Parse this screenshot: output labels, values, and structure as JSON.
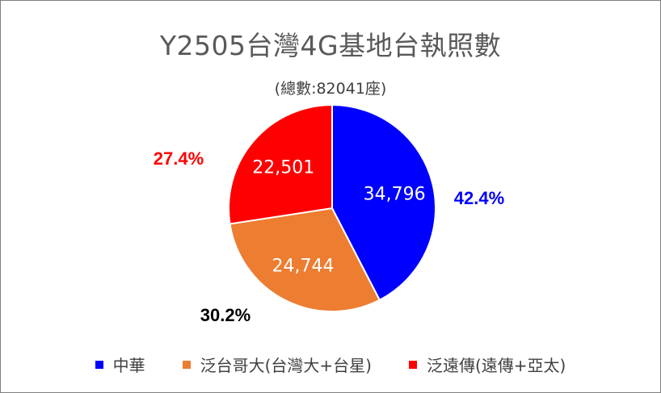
{
  "chart_data": {
    "type": "pie",
    "title": "Y2505台灣4G基地台執照數",
    "subtitle": "(總數:82041座)",
    "slices": [
      {
        "name": "中華",
        "value": 34796,
        "value_label": "34,796",
        "percent_label": "42.4%",
        "color": "#0000FF",
        "percent_color": "#0000FF"
      },
      {
        "name": "泛台哥大(台灣大+台星)",
        "value": 24744,
        "value_label": "24,744",
        "percent_label": "30.2%",
        "color": "#ED7D31",
        "percent_color": "#000000"
      },
      {
        "name": "泛遠傳(遠傳+亞太)",
        "value": 22501,
        "value_label": "22,501",
        "percent_label": "27.4%",
        "color": "#FF0000",
        "percent_color": "#FF0000"
      }
    ],
    "start_angle": "12 o'clock",
    "direction": "clockwise",
    "legend_position": "bottom"
  }
}
